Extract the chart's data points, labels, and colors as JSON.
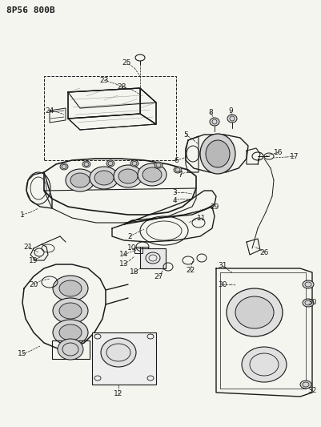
{
  "title": "8P56 800B",
  "bg_color": "#f5f5f0",
  "line_color": "#1a1a1a",
  "label_color": "#1a1a1a",
  "fig_w": 4.02,
  "fig_h": 5.33,
  "dpi": 100
}
